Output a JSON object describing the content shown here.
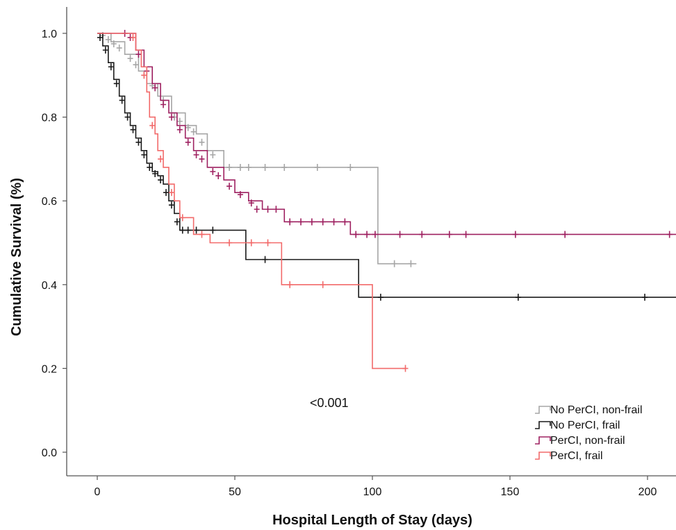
{
  "chart_data": {
    "type": "line",
    "subtype": "kaplan-meier",
    "title": "",
    "xlabel": "Hospital Length of Stay (days)",
    "ylabel": "Cumulative Survival (%)",
    "xlim": [
      -10,
      212
    ],
    "ylim": [
      -0.05,
      1.1
    ],
    "x_ticks": [
      0,
      50,
      100,
      150,
      200
    ],
    "x_tick_labels": [
      "0",
      "50",
      "100",
      "150",
      "200"
    ],
    "y_ticks": [
      0.0,
      0.2,
      0.4,
      0.6,
      0.8,
      1.0
    ],
    "y_tick_labels": [
      "0.0",
      "0.2",
      "0.4",
      "0.6",
      "0.8",
      "1.0"
    ],
    "grid": false,
    "legend_position": "bottom-right",
    "annotation": "<0.001",
    "series": [
      {
        "name": "No PerCI, non-frail",
        "color": "#a6a6a6",
        "steps": [
          [
            0,
            1.0
          ],
          [
            5,
            0.98
          ],
          [
            10,
            0.95
          ],
          [
            15,
            0.91
          ],
          [
            18,
            0.88
          ],
          [
            22,
            0.85
          ],
          [
            27,
            0.81
          ],
          [
            32,
            0.78
          ],
          [
            36,
            0.76
          ],
          [
            40,
            0.72
          ],
          [
            46,
            0.68
          ],
          [
            101,
            0.68
          ],
          [
            102,
            0.45
          ],
          [
            116,
            0.45
          ]
        ],
        "censored": [
          [
            2,
            0.995
          ],
          [
            4,
            0.985
          ],
          [
            6,
            0.975
          ],
          [
            8,
            0.965
          ],
          [
            12,
            0.94
          ],
          [
            14,
            0.925
          ],
          [
            17,
            0.9
          ],
          [
            20,
            0.875
          ],
          [
            24,
            0.84
          ],
          [
            28,
            0.8
          ],
          [
            30,
            0.79
          ],
          [
            33,
            0.775
          ],
          [
            35,
            0.765
          ],
          [
            38,
            0.74
          ],
          [
            42,
            0.71
          ],
          [
            48,
            0.68
          ],
          [
            52,
            0.68
          ],
          [
            55,
            0.68
          ],
          [
            61,
            0.68
          ],
          [
            68,
            0.68
          ],
          [
            80,
            0.68
          ],
          [
            92,
            0.68
          ],
          [
            108,
            0.45
          ],
          [
            114,
            0.45
          ]
        ]
      },
      {
        "name": "No PerCI, frail",
        "color": "#1a1a1a",
        "steps": [
          [
            0,
            1.0
          ],
          [
            2,
            0.97
          ],
          [
            4,
            0.93
          ],
          [
            6,
            0.89
          ],
          [
            8,
            0.85
          ],
          [
            10,
            0.81
          ],
          [
            12,
            0.78
          ],
          [
            14,
            0.75
          ],
          [
            16,
            0.72
          ],
          [
            18,
            0.69
          ],
          [
            20,
            0.67
          ],
          [
            22,
            0.66
          ],
          [
            24,
            0.64
          ],
          [
            26,
            0.6
          ],
          [
            28,
            0.57
          ],
          [
            30,
            0.53
          ],
          [
            53,
            0.53
          ],
          [
            54,
            0.46
          ],
          [
            94,
            0.46
          ],
          [
            95,
            0.37
          ],
          [
            215,
            0.37
          ]
        ],
        "censored": [
          [
            1,
            0.99
          ],
          [
            3,
            0.96
          ],
          [
            5,
            0.92
          ],
          [
            7,
            0.88
          ],
          [
            9,
            0.84
          ],
          [
            11,
            0.8
          ],
          [
            13,
            0.77
          ],
          [
            15,
            0.74
          ],
          [
            17,
            0.71
          ],
          [
            19,
            0.68
          ],
          [
            21,
            0.665
          ],
          [
            23,
            0.65
          ],
          [
            25,
            0.62
          ],
          [
            27,
            0.59
          ],
          [
            29,
            0.55
          ],
          [
            31,
            0.53
          ],
          [
            33,
            0.53
          ],
          [
            36,
            0.53
          ],
          [
            42,
            0.53
          ],
          [
            61,
            0.46
          ],
          [
            103,
            0.37
          ],
          [
            153,
            0.37
          ],
          [
            199,
            0.37
          ]
        ]
      },
      {
        "name": "PerCI, non-frail",
        "color": "#9e2060",
        "steps": [
          [
            0,
            1.0
          ],
          [
            11,
            1.0
          ],
          [
            14,
            0.96
          ],
          [
            17,
            0.92
          ],
          [
            20,
            0.88
          ],
          [
            23,
            0.84
          ],
          [
            26,
            0.81
          ],
          [
            29,
            0.78
          ],
          [
            32,
            0.75
          ],
          [
            35,
            0.72
          ],
          [
            40,
            0.68
          ],
          [
            46,
            0.65
          ],
          [
            50,
            0.62
          ],
          [
            55,
            0.6
          ],
          [
            60,
            0.58
          ],
          [
            67,
            0.58
          ],
          [
            68,
            0.55
          ],
          [
            91,
            0.55
          ],
          [
            92,
            0.52
          ],
          [
            215,
            0.52
          ]
        ],
        "censored": [
          [
            10,
            1.0
          ],
          [
            12,
            0.99
          ],
          [
            15,
            0.95
          ],
          [
            18,
            0.91
          ],
          [
            21,
            0.87
          ],
          [
            24,
            0.83
          ],
          [
            27,
            0.8
          ],
          [
            30,
            0.77
          ],
          [
            33,
            0.74
          ],
          [
            36,
            0.71
          ],
          [
            38,
            0.7
          ],
          [
            42,
            0.67
          ],
          [
            44,
            0.66
          ],
          [
            48,
            0.635
          ],
          [
            52,
            0.615
          ],
          [
            56,
            0.595
          ],
          [
            58,
            0.58
          ],
          [
            62,
            0.58
          ],
          [
            65,
            0.58
          ],
          [
            70,
            0.55
          ],
          [
            74,
            0.55
          ],
          [
            78,
            0.55
          ],
          [
            82,
            0.55
          ],
          [
            86,
            0.55
          ],
          [
            90,
            0.55
          ],
          [
            94,
            0.52
          ],
          [
            98,
            0.52
          ],
          [
            101,
            0.52
          ],
          [
            110,
            0.52
          ],
          [
            118,
            0.52
          ],
          [
            128,
            0.52
          ],
          [
            134,
            0.52
          ],
          [
            152,
            0.52
          ],
          [
            170,
            0.52
          ],
          [
            208,
            0.52
          ]
        ]
      },
      {
        "name": "PerCI, frail",
        "color": "#f26a6a",
        "steps": [
          [
            0,
            1.0
          ],
          [
            12,
            1.0
          ],
          [
            14,
            0.96
          ],
          [
            16,
            0.92
          ],
          [
            18,
            0.86
          ],
          [
            19,
            0.8
          ],
          [
            21,
            0.76
          ],
          [
            22,
            0.72
          ],
          [
            24,
            0.68
          ],
          [
            26,
            0.64
          ],
          [
            28,
            0.6
          ],
          [
            30,
            0.56
          ],
          [
            34,
            0.56
          ],
          [
            35,
            0.52
          ],
          [
            40,
            0.52
          ],
          [
            41,
            0.5
          ],
          [
            66,
            0.5
          ],
          [
            67,
            0.4
          ],
          [
            99,
            0.4
          ],
          [
            100,
            0.2
          ],
          [
            112,
            0.2
          ]
        ],
        "censored": [
          [
            13,
            0.99
          ],
          [
            17,
            0.9
          ],
          [
            20,
            0.78
          ],
          [
            23,
            0.7
          ],
          [
            27,
            0.62
          ],
          [
            31,
            0.56
          ],
          [
            38,
            0.52
          ],
          [
            48,
            0.5
          ],
          [
            56,
            0.5
          ],
          [
            62,
            0.5
          ],
          [
            70,
            0.4
          ],
          [
            82,
            0.4
          ],
          [
            112,
            0.2
          ]
        ]
      }
    ]
  }
}
